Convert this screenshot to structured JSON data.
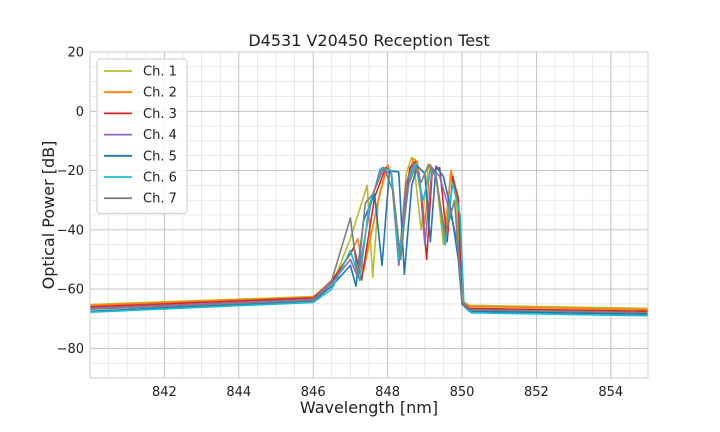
{
  "chart_data": {
    "type": "line",
    "title": "D4531 V20450 Reception Test",
    "xlabel": "Wavelength [nm]",
    "ylabel": "Optical Power [dB]",
    "xlim": [
      840,
      855
    ],
    "ylim": [
      -90,
      20
    ],
    "x_ticks": [
      842,
      844,
      846,
      848,
      850,
      852,
      854
    ],
    "x_tick_labels": [
      "842",
      "844",
      "846",
      "848",
      "850",
      "852",
      "854"
    ],
    "y_ticks": [
      -80,
      -60,
      -40,
      -20,
      0,
      20
    ],
    "y_tick_labels": [
      "−80",
      "−60",
      "−40",
      "−20",
      "0",
      "20"
    ],
    "x_minor_step": 0.5,
    "y_minor_step": 5,
    "grid": true,
    "legend_position": "top-left",
    "series": [
      {
        "name": "Ch. 1",
        "color": "#bcbd22",
        "x": [
          840,
          846,
          846.5,
          847,
          847.45,
          847.6,
          847.75,
          848,
          848.1,
          848.3,
          848.5,
          848.65,
          848.7,
          848.9,
          849.1,
          849.3,
          849.5,
          849.7,
          849.85,
          850,
          850.2,
          855
        ],
        "y": [
          -65.2,
          -62.5,
          -59,
          -43,
          -25,
          -56,
          -30,
          -18.5,
          -21,
          -52,
          -21,
          -15.5,
          -17,
          -40,
          -18,
          -22,
          -45,
          -21,
          -30,
          -64,
          -65.5,
          -66.5
        ]
      },
      {
        "name": "Ch. 2",
        "color": "#ff7f0e",
        "x": [
          840,
          846,
          846.5,
          847,
          847.2,
          847.35,
          847.8,
          848,
          848.1,
          848.35,
          848.55,
          848.7,
          848.8,
          849,
          849.15,
          849.3,
          849.55,
          849.7,
          849.9,
          850,
          850.2,
          855
        ],
        "y": [
          -65.5,
          -62.8,
          -57,
          -48,
          -43,
          -54,
          -27,
          -18,
          -21,
          -50,
          -22,
          -16,
          -17,
          -38,
          -18,
          -22,
          -45,
          -20,
          -29,
          -64,
          -65.8,
          -67
        ]
      },
      {
        "name": "Ch. 3",
        "color": "#d62728",
        "x": [
          840,
          846,
          846.5,
          847,
          847.1,
          847.3,
          847.65,
          847.95,
          848.1,
          848.3,
          848.6,
          848.75,
          848.9,
          849.05,
          849.2,
          849.4,
          849.6,
          849.75,
          849.9,
          850,
          850.2,
          855
        ],
        "y": [
          -66,
          -63,
          -57.5,
          -48,
          -46,
          -57,
          -29,
          -19,
          -20.5,
          -50,
          -19,
          -17,
          -28,
          -50,
          -20,
          -19,
          -44,
          -22,
          -30,
          -64.5,
          -66.5,
          -67.5
        ]
      },
      {
        "name": "Ch. 4",
        "color": "#9467bd",
        "x": [
          840,
          846,
          846.5,
          847,
          847.2,
          847.55,
          847.8,
          848.1,
          848.3,
          848.5,
          848.7,
          848.85,
          849,
          849.2,
          849.4,
          849.7,
          849.9,
          850,
          850.2,
          855
        ],
        "y": [
          -66.5,
          -63.5,
          -58,
          -50,
          -56,
          -31,
          -19.5,
          -21,
          -52,
          -24,
          -18,
          -21,
          -45,
          -19,
          -22,
          -35,
          -45,
          -65,
          -67,
          -68
        ]
      },
      {
        "name": "Ch. 5",
        "color": "#1f77b4",
        "x": [
          840,
          846,
          846.5,
          847,
          847.15,
          847.35,
          847.65,
          847.85,
          848.05,
          848.3,
          848.45,
          848.65,
          848.8,
          849,
          849.15,
          849.3,
          849.5,
          849.7,
          849.9,
          850,
          850.2,
          855
        ],
        "y": [
          -67.5,
          -64,
          -59,
          -52,
          -59,
          -37,
          -28,
          -52,
          -20,
          -20.5,
          -55,
          -25,
          -18.5,
          -21,
          -44,
          -18.5,
          -22,
          -33,
          -50,
          -65,
          -67.5,
          -68.5
        ]
      },
      {
        "name": "Ch. 6",
        "color": "#17becf",
        "x": [
          840,
          846,
          846.5,
          847,
          847.25,
          847.5,
          847.85,
          848.1,
          848.3,
          848.6,
          848.75,
          848.95,
          849.15,
          849.3,
          849.55,
          849.75,
          849.95,
          850.05,
          850.25,
          855
        ],
        "y": [
          -67.8,
          -64.5,
          -60,
          -47,
          -57,
          -32,
          -19,
          -20,
          -50,
          -22,
          -17.5,
          -30,
          -20,
          -21,
          -45,
          -24,
          -35,
          -65,
          -68,
          -69
        ]
      },
      {
        "name": "Ch. 7",
        "color": "#7f7f7f",
        "x": [
          840,
          846,
          846.5,
          847,
          847.2,
          847.4,
          847.6,
          847.9,
          848.15,
          848.35,
          848.55,
          848.75,
          848.9,
          849.1,
          849.3,
          849.55,
          849.8,
          850,
          850.2,
          855
        ],
        "y": [
          -66.8,
          -63.8,
          -57,
          -36,
          -56,
          -31,
          -28,
          -19,
          -27,
          -50,
          -25,
          -19,
          -24,
          -18,
          -22,
          -42,
          -30,
          -64.5,
          -67,
          -68
        ]
      }
    ]
  }
}
